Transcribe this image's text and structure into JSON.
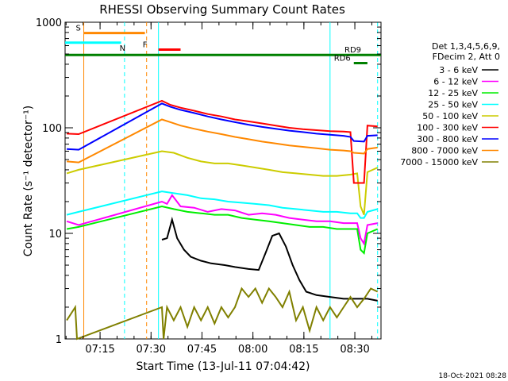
{
  "chart_data": {
    "type": "line",
    "title": "RHESSI Observing Summary Count Rates",
    "ylabel": "Count Rate (s⁻¹ detector⁻¹)",
    "xlabel": "Start Time (13-Jul-11 07:04:42)",
    "yscale": "log",
    "ylim": [
      1,
      1000
    ],
    "xlim_minutes": [
      0,
      93
    ],
    "x_ticks": [
      {
        "label": "07:15",
        "minutes": 10.3
      },
      {
        "label": "07:30",
        "minutes": 25.3
      },
      {
        "label": "07:45",
        "minutes": 40.3
      },
      {
        "label": "08:00",
        "minutes": 55.3
      },
      {
        "label": "08:15",
        "minutes": 70.3
      },
      {
        "label": "08:30",
        "minutes": 85.3
      }
    ],
    "y_ticks": [
      "1",
      "10",
      "100",
      "1000"
    ],
    "timestamp": "18-Oct-2021 08:28",
    "legend_header": [
      "Det 1,3,4,5,6,9,",
      "FDecim 2, Att 0"
    ],
    "series": [
      {
        "name": "3 - 6 keV",
        "color": "#000000",
        "points": [
          [
            28.5,
            8.7
          ],
          [
            30,
            9
          ],
          [
            31.5,
            13.5
          ],
          [
            33,
            9
          ],
          [
            35,
            7
          ],
          [
            37,
            6
          ],
          [
            40,
            5.5
          ],
          [
            43,
            5.2
          ],
          [
            47,
            5
          ],
          [
            50,
            4.8
          ],
          [
            54,
            4.6
          ],
          [
            57,
            4.5
          ],
          [
            59,
            6.5
          ],
          [
            61,
            9.5
          ],
          [
            63,
            10
          ],
          [
            65,
            7.5
          ],
          [
            67,
            5
          ],
          [
            69,
            3.6
          ],
          [
            71,
            2.8
          ],
          [
            74,
            2.6
          ],
          [
            78,
            2.5
          ],
          [
            82,
            2.4
          ],
          [
            86,
            2.4
          ],
          [
            89,
            2.4
          ],
          [
            92,
            2.3
          ]
        ]
      },
      {
        "name": "6 - 12 keV",
        "color": "#ff00ff",
        "points": [
          [
            0.5,
            13
          ],
          [
            4,
            12
          ],
          [
            28.5,
            20
          ],
          [
            30,
            19
          ],
          [
            31.5,
            23
          ],
          [
            34,
            18
          ],
          [
            38,
            17.5
          ],
          [
            42,
            16
          ],
          [
            46,
            17
          ],
          [
            50,
            16.5
          ],
          [
            54,
            15
          ],
          [
            58,
            15.5
          ],
          [
            62,
            15
          ],
          [
            66,
            14
          ],
          [
            70,
            13.5
          ],
          [
            74,
            13
          ],
          [
            78,
            13
          ],
          [
            82,
            12.5
          ],
          [
            86,
            12.5
          ],
          [
            87,
            9
          ],
          [
            88,
            8
          ],
          [
            89,
            12
          ],
          [
            92,
            12.5
          ]
        ]
      },
      {
        "name": "12 - 25 keV",
        "color": "#00ee00",
        "points": [
          [
            0.5,
            11
          ],
          [
            4,
            11.5
          ],
          [
            28.5,
            18
          ],
          [
            32,
            17
          ],
          [
            36,
            16
          ],
          [
            40,
            15.5
          ],
          [
            44,
            15
          ],
          [
            48,
            15
          ],
          [
            52,
            14
          ],
          [
            56,
            13.5
          ],
          [
            60,
            13
          ],
          [
            64,
            12.5
          ],
          [
            68,
            12
          ],
          [
            72,
            11.5
          ],
          [
            76,
            11.5
          ],
          [
            80,
            11
          ],
          [
            84,
            11
          ],
          [
            86,
            11
          ],
          [
            87,
            7
          ],
          [
            88,
            6.5
          ],
          [
            89,
            10
          ],
          [
            92,
            11
          ]
        ]
      },
      {
        "name": "25 - 50 keV",
        "color": "#00ffff",
        "points": [
          [
            0.5,
            15
          ],
          [
            4,
            16
          ],
          [
            28.5,
            25
          ],
          [
            32,
            24
          ],
          [
            36,
            23
          ],
          [
            40,
            21.5
          ],
          [
            44,
            21
          ],
          [
            48,
            20
          ],
          [
            52,
            19.5
          ],
          [
            56,
            19
          ],
          [
            60,
            18.5
          ],
          [
            64,
            17.5
          ],
          [
            68,
            17
          ],
          [
            72,
            16.5
          ],
          [
            76,
            16
          ],
          [
            80,
            16
          ],
          [
            84,
            15.5
          ],
          [
            86,
            15.5
          ],
          [
            87,
            14
          ],
          [
            88,
            14
          ],
          [
            89,
            16
          ],
          [
            92,
            17
          ]
        ]
      },
      {
        "name": "50 - 100 keV",
        "color": "#cccc00",
        "points": [
          [
            0.5,
            37
          ],
          [
            4,
            40
          ],
          [
            28.5,
            60
          ],
          [
            32,
            58
          ],
          [
            36,
            52
          ],
          [
            40,
            48
          ],
          [
            44,
            46
          ],
          [
            48,
            46
          ],
          [
            52,
            44
          ],
          [
            56,
            42
          ],
          [
            60,
            40
          ],
          [
            64,
            38
          ],
          [
            68,
            37
          ],
          [
            72,
            36
          ],
          [
            76,
            35
          ],
          [
            80,
            35
          ],
          [
            84,
            36
          ],
          [
            86,
            37
          ],
          [
            87,
            18
          ],
          [
            88,
            15
          ],
          [
            89,
            38
          ],
          [
            92,
            42
          ]
        ]
      },
      {
        "name": "100 - 300 keV",
        "color": "#ff0000",
        "points": [
          [
            0.5,
            88
          ],
          [
            4,
            87
          ],
          [
            28.5,
            180
          ],
          [
            31,
            165
          ],
          [
            34,
            155
          ],
          [
            38,
            145
          ],
          [
            42,
            135
          ],
          [
            46,
            128
          ],
          [
            50,
            120
          ],
          [
            54,
            115
          ],
          [
            58,
            110
          ],
          [
            62,
            105
          ],
          [
            66,
            100
          ],
          [
            70,
            97
          ],
          [
            74,
            95
          ],
          [
            78,
            93
          ],
          [
            82,
            92
          ],
          [
            84,
            91
          ],
          [
            85,
            30
          ],
          [
            88,
            30
          ],
          [
            89,
            105
          ],
          [
            92,
            103
          ]
        ]
      },
      {
        "name": "300 - 800 keV",
        "color": "#0000ff",
        "points": [
          [
            0.5,
            63
          ],
          [
            4,
            62
          ],
          [
            28.5,
            170
          ],
          [
            31,
            158
          ],
          [
            34,
            148
          ],
          [
            38,
            138
          ],
          [
            42,
            128
          ],
          [
            46,
            120
          ],
          [
            50,
            113
          ],
          [
            54,
            107
          ],
          [
            58,
            102
          ],
          [
            62,
            98
          ],
          [
            66,
            94
          ],
          [
            70,
            91
          ],
          [
            74,
            88
          ],
          [
            78,
            86
          ],
          [
            82,
            84
          ],
          [
            84,
            82
          ],
          [
            85,
            75
          ],
          [
            88,
            74
          ],
          [
            89,
            84
          ],
          [
            92,
            85
          ]
        ]
      },
      {
        "name": "800 - 7000 keV",
        "color": "#ff8800",
        "points": [
          [
            0.5,
            48
          ],
          [
            4,
            47
          ],
          [
            28.5,
            120
          ],
          [
            31,
            113
          ],
          [
            34,
            105
          ],
          [
            38,
            98
          ],
          [
            42,
            92
          ],
          [
            46,
            87
          ],
          [
            50,
            82
          ],
          [
            54,
            78
          ],
          [
            58,
            74
          ],
          [
            62,
            71
          ],
          [
            66,
            68
          ],
          [
            70,
            66
          ],
          [
            74,
            64
          ],
          [
            78,
            62
          ],
          [
            82,
            61
          ],
          [
            84,
            60
          ],
          [
            85,
            58
          ],
          [
            88,
            57
          ],
          [
            89,
            63
          ],
          [
            92,
            65
          ]
        ]
      },
      {
        "name": "7000 - 15000 keV",
        "color": "#808000",
        "points": [
          [
            0.5,
            1.5
          ],
          [
            3,
            2
          ],
          [
            3.5,
            1
          ],
          [
            28.5,
            2
          ],
          [
            29,
            1
          ],
          [
            30,
            2
          ],
          [
            32,
            1.5
          ],
          [
            34,
            2
          ],
          [
            36,
            1.3
          ],
          [
            38,
            2
          ],
          [
            40,
            1.5
          ],
          [
            42,
            2
          ],
          [
            44,
            1.4
          ],
          [
            46,
            2
          ],
          [
            48,
            1.6
          ],
          [
            50,
            2
          ],
          [
            52,
            3
          ],
          [
            54,
            2.5
          ],
          [
            56,
            3
          ],
          [
            58,
            2.2
          ],
          [
            60,
            3
          ],
          [
            62,
            2.5
          ],
          [
            64,
            2
          ],
          [
            66,
            2.8
          ],
          [
            68,
            1.5
          ],
          [
            70,
            2
          ],
          [
            72,
            1.2
          ],
          [
            74,
            2
          ],
          [
            76,
            1.5
          ],
          [
            78,
            2
          ],
          [
            80,
            1.6
          ],
          [
            82,
            2
          ],
          [
            84,
            2.5
          ],
          [
            86,
            2
          ],
          [
            88,
            2.4
          ],
          [
            90,
            3
          ],
          [
            92,
            2.8
          ]
        ]
      }
    ],
    "state_bars": [
      {
        "label": "S",
        "color": "#ff8800",
        "y": 790,
        "x0": 5.5,
        "x1": 23.5
      },
      {
        "label": "N",
        "color": "#00ffff",
        "y": 640,
        "x0": 0,
        "x1": 16.5
      },
      {
        "label": "F",
        "color": "#ff0000",
        "y": 550,
        "x0": 27.5,
        "x1": 34
      },
      {
        "label": "RD9",
        "color": "#008000",
        "y": 490,
        "x0": 0,
        "x1": 93
      },
      {
        "label": "RD6",
        "color": "#008000",
        "y": 410,
        "x0": 85,
        "x1": 89
      }
    ],
    "vertical_markers": [
      {
        "color": "#ff8800",
        "x": 5.5,
        "dashed": false
      },
      {
        "color": "#00ffff",
        "x": 17.5,
        "dashed": true
      },
      {
        "color": "#ff8800",
        "x": 24.0,
        "dashed": true
      },
      {
        "color": "#00ffff",
        "x": 27.5,
        "dashed": false
      },
      {
        "color": "#00ffff",
        "x": 78.0,
        "dashed": false
      },
      {
        "color": "#00ffff",
        "x": 92.0,
        "dashed": true
      }
    ]
  }
}
